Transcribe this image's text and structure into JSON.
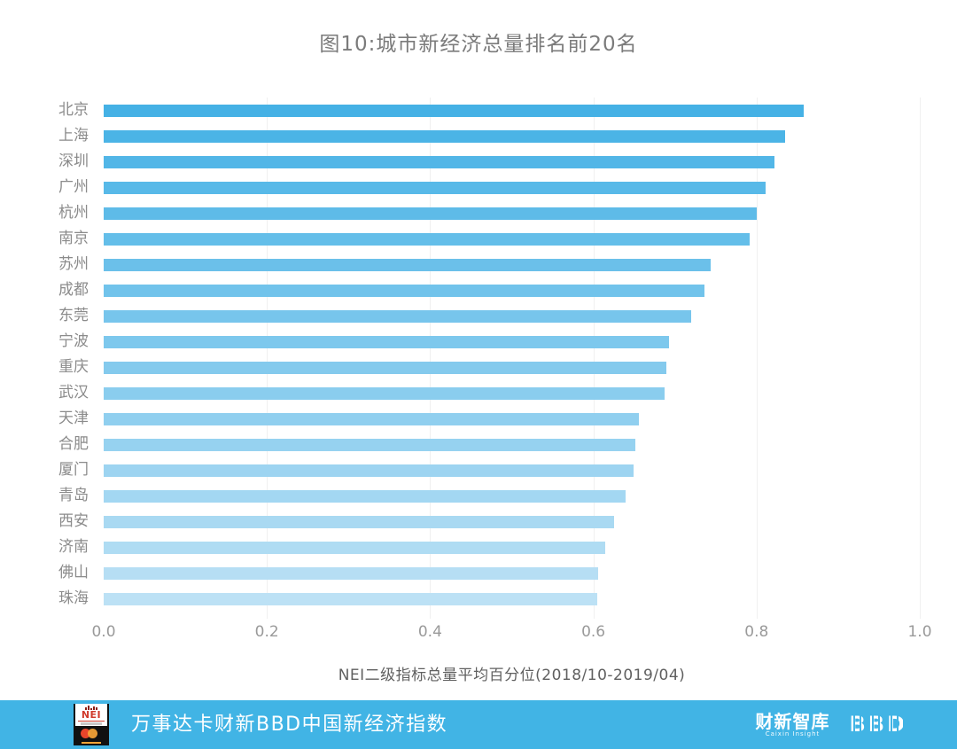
{
  "title": "图10:城市新经济总量排名前20名",
  "chart_data": {
    "type": "bar",
    "orientation": "horizontal",
    "title": "图10:城市新经济总量排名前20名",
    "categories": [
      "北京",
      "上海",
      "深圳",
      "广州",
      "杭州",
      "南京",
      "苏州",
      "成都",
      "东莞",
      "宁波",
      "重庆",
      "武汉",
      "天津",
      "合肥",
      "厦门",
      "青岛",
      "西安",
      "济南",
      "佛山",
      "珠海"
    ],
    "values": [
      0.858,
      0.835,
      0.822,
      0.811,
      0.8,
      0.791,
      0.744,
      0.736,
      0.72,
      0.693,
      0.69,
      0.687,
      0.656,
      0.652,
      0.649,
      0.64,
      0.625,
      0.615,
      0.606,
      0.605
    ],
    "xlabel": "NEI二级指标总量平均百分位(2018/10-2019/04)",
    "xlim": [
      0.0,
      1.0
    ],
    "xticks": [
      "0.0",
      "0.2",
      "0.4",
      "0.6",
      "0.8",
      "1.0"
    ],
    "grid": "vertical, very faint",
    "legend": "none",
    "bar_color_top": "#45b1e5",
    "bar_color_bottom": "#bce1f5",
    "gridline_color": "#f0f0f0"
  },
  "footer": {
    "background_color": "#41b4e5",
    "title": "万事达卡财新BBD中国新经济指数",
    "nei_logo_text": "NEI",
    "caixin_logo_text": "财新智库",
    "caixin_logo_subtext": "Caixin Insight",
    "bbd_logo_text": "BBD"
  }
}
